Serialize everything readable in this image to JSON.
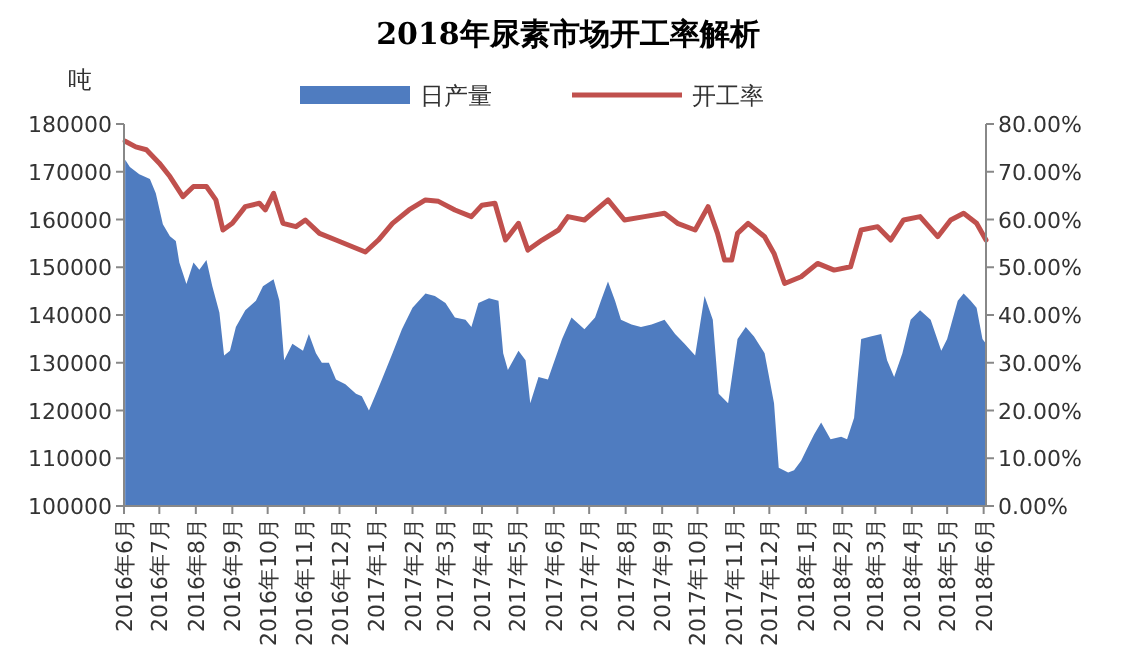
{
  "chart_data": {
    "type": "line",
    "title": "2018年尿素市场开工率解析",
    "ylabel": "吨",
    "legend": "top",
    "grid": false,
    "xlim": [
      "2016-06-01",
      "2018-06-03"
    ],
    "xticks": [
      {
        "value": "2016-06",
        "label": "2016年6月"
      },
      {
        "value": "2016-07",
        "label": "2016年7月"
      },
      {
        "value": "2016-08",
        "label": "2016年8月"
      },
      {
        "value": "2016-09",
        "label": "2016年9月"
      },
      {
        "value": "2016-10",
        "label": "2016年10月"
      },
      {
        "value": "2016-11",
        "label": "2016年11月"
      },
      {
        "value": "2016-12",
        "label": "2016年12月"
      },
      {
        "value": "2017-01",
        "label": "2017年1月"
      },
      {
        "value": "2017-02",
        "label": "2017年2月"
      },
      {
        "value": "2017-03",
        "label": "2017年3月"
      },
      {
        "value": "2017-04",
        "label": "2017年4月"
      },
      {
        "value": "2017-05",
        "label": "2017年5月"
      },
      {
        "value": "2017-06",
        "label": "2017年6月"
      },
      {
        "value": "2017-07",
        "label": "2017年7月"
      },
      {
        "value": "2017-08",
        "label": "2017年8月"
      },
      {
        "value": "2017-09",
        "label": "2017年9月"
      },
      {
        "value": "2017-10",
        "label": "2017年10月"
      },
      {
        "value": "2017-11",
        "label": "2017年11月"
      },
      {
        "value": "2017-12",
        "label": "2017年12月"
      },
      {
        "value": "2018-01",
        "label": "2018年1月"
      },
      {
        "value": "2018-02",
        "label": "2018年2月"
      },
      {
        "value": "2018-03",
        "label": "2018年3月"
      },
      {
        "value": "2018-04",
        "label": "2018年4月"
      },
      {
        "value": "2018-05",
        "label": "2018年5月"
      },
      {
        "value": "2018-06",
        "label": "2018年6月"
      }
    ],
    "ylim": [
      100000,
      180000
    ],
    "yticks": [
      100000,
      110000,
      120000,
      130000,
      140000,
      150000,
      160000,
      170000,
      180000
    ],
    "y2lim": [
      0,
      80
    ],
    "y2ticks": [
      {
        "value": 0,
        "label": "0.00%"
      },
      {
        "value": 10,
        "label": "10.00%"
      },
      {
        "value": 20,
        "label": "20.00%"
      },
      {
        "value": 30,
        "label": "30.00%"
      },
      {
        "value": 40,
        "label": "40.00%"
      },
      {
        "value": 50,
        "label": "50.00%"
      },
      {
        "value": 60,
        "label": "60.00%"
      },
      {
        "value": 70,
        "label": "70.00%"
      },
      {
        "value": 80,
        "label": "80.00%"
      }
    ],
    "series": [
      {
        "name": "日产量",
        "type": "area",
        "color": "#4f7cc0",
        "x": [
          "2016-06-02",
          "2016-06-06",
          "2016-06-14",
          "2016-06-23",
          "2016-06-28",
          "2016-07-04",
          "2016-07-10",
          "2016-07-15",
          "2016-07-18",
          "2016-07-24",
          "2016-07-30",
          "2016-08-04",
          "2016-08-10",
          "2016-08-15",
          "2016-08-21",
          "2016-08-25",
          "2016-08-30",
          "2016-09-04",
          "2016-09-12",
          "2016-09-21",
          "2016-09-27",
          "2016-10-06",
          "2016-10-11",
          "2016-10-15",
          "2016-10-22",
          "2016-10-31",
          "2016-11-05",
          "2016-11-11",
          "2016-11-16",
          "2016-11-22",
          "2016-11-28",
          "2016-12-06",
          "2016-12-15",
          "2016-12-20",
          "2016-12-26",
          "2017-01-01",
          "2017-01-06",
          "2017-01-15",
          "2017-01-23",
          "2017-02-01",
          "2017-02-12",
          "2017-02-20",
          "2017-03-01",
          "2017-03-09",
          "2017-03-18",
          "2017-03-23",
          "2017-03-29",
          "2017-04-07",
          "2017-04-15",
          "2017-04-19",
          "2017-04-23",
          "2017-05-02",
          "2017-05-08",
          "2017-05-12",
          "2017-05-19",
          "2017-05-27",
          "2017-06-08",
          "2017-06-16",
          "2017-06-27",
          "2017-07-06",
          "2017-07-11",
          "2017-07-17",
          "2017-07-23",
          "2017-07-28",
          "2017-08-06",
          "2017-08-14",
          "2017-08-23",
          "2017-09-03",
          "2017-09-12",
          "2017-09-20",
          "2017-09-29",
          "2017-10-07",
          "2017-10-14",
          "2017-10-19",
          "2017-10-27",
          "2017-11-04",
          "2017-11-11",
          "2017-11-18",
          "2017-11-27",
          "2017-12-05",
          "2017-12-09",
          "2017-12-17",
          "2017-12-22",
          "2017-12-28",
          "2018-01-03",
          "2018-01-08",
          "2018-01-14",
          "2018-01-22",
          "2018-01-31",
          "2018-02-05",
          "2018-02-11",
          "2018-02-17",
          "2018-02-25",
          "2018-03-06",
          "2018-03-11",
          "2018-03-17",
          "2018-03-24",
          "2018-03-31",
          "2018-04-08",
          "2018-04-17",
          "2018-04-26",
          "2018-05-01",
          "2018-05-10",
          "2018-05-15",
          "2018-05-21",
          "2018-05-26",
          "2018-05-31",
          "2018-06-03"
        ],
        "values": [
          172500,
          171000,
          169500,
          168500,
          165500,
          159000,
          156500,
          155500,
          151000,
          146500,
          151000,
          149500,
          151500,
          146000,
          140500,
          131500,
          132500,
          137500,
          141000,
          143000,
          146000,
          147500,
          143000,
          130500,
          134000,
          132500,
          136000,
          132000,
          130000,
          130000,
          126500,
          125500,
          123500,
          123000,
          120000,
          123500,
          126500,
          132000,
          137000,
          141500,
          144500,
          144000,
          142500,
          139500,
          139000,
          137500,
          142500,
          143500,
          143000,
          132000,
          128500,
          132500,
          130500,
          121500,
          127000,
          126500,
          135000,
          139500,
          137000,
          139500,
          143000,
          147000,
          143000,
          139000,
          138000,
          137500,
          138000,
          139000,
          136000,
          134000,
          131500,
          144000,
          139000,
          123500,
          121500,
          135000,
          137500,
          135500,
          132000,
          121500,
          108000,
          107000,
          107500,
          109500,
          112500,
          115000,
          117500,
          114000,
          114500,
          114000,
          118500,
          135000,
          135500,
          136000,
          130500,
          127000,
          132000,
          139000,
          141000,
          139000,
          132500,
          135000,
          143000,
          144500,
          143000,
          141500,
          135000,
          134000
        ]
      },
      {
        "name": "开工率",
        "axis": "y2",
        "color": "#c0504d",
        "x": [
          "2016-06-02",
          "2016-06-11",
          "2016-06-20",
          "2016-07-01",
          "2016-07-10",
          "2016-07-21",
          "2016-07-30",
          "2016-08-10",
          "2016-08-18",
          "2016-08-24",
          "2016-09-01",
          "2016-09-12",
          "2016-09-24",
          "2016-09-29",
          "2016-10-06",
          "2016-10-14",
          "2016-10-25",
          "2016-11-02",
          "2016-11-14",
          "2016-11-28",
          "2016-12-12",
          "2016-12-23",
          "2017-01-03",
          "2017-01-15",
          "2017-01-29",
          "2017-02-12",
          "2017-02-23",
          "2017-03-09",
          "2017-03-23",
          "2017-04-01",
          "2017-04-12",
          "2017-04-21",
          "2017-05-02",
          "2017-05-10",
          "2017-05-22",
          "2017-06-05",
          "2017-06-13",
          "2017-06-27",
          "2017-07-17",
          "2017-07-31",
          "2017-08-17",
          "2017-09-03",
          "2017-09-14",
          "2017-09-29",
          "2017-10-10",
          "2017-10-18",
          "2017-10-24",
          "2017-10-30",
          "2017-11-04",
          "2017-11-13",
          "2017-11-27",
          "2017-12-05",
          "2017-12-14",
          "2017-12-28",
          "2018-01-11",
          "2018-01-25",
          "2018-02-08",
          "2018-02-17",
          "2018-03-03",
          "2018-03-14",
          "2018-03-25",
          "2018-04-08",
          "2018-04-23",
          "2018-05-04",
          "2018-05-15",
          "2018-05-26",
          "2018-06-03"
        ],
        "values": [
          76.4,
          75.2,
          74.6,
          71.8,
          69.0,
          64.8,
          66.9,
          66.9,
          64.1,
          57.8,
          59.2,
          62.7,
          63.4,
          62.0,
          65.5,
          59.2,
          58.5,
          59.9,
          57.1,
          55.7,
          54.3,
          53.2,
          55.7,
          59.2,
          62.0,
          64.1,
          63.8,
          62.0,
          60.6,
          63.0,
          63.4,
          55.7,
          59.2,
          53.6,
          55.7,
          57.8,
          60.6,
          59.9,
          64.1,
          59.9,
          60.6,
          61.3,
          59.2,
          57.8,
          62.7,
          57.1,
          51.5,
          51.5,
          57.1,
          59.2,
          56.4,
          52.9,
          46.6,
          48.0,
          50.8,
          49.4,
          50.1,
          57.8,
          58.5,
          55.7,
          59.9,
          60.6,
          56.4,
          59.9,
          61.3,
          59.2,
          55.7
        ]
      }
    ]
  }
}
